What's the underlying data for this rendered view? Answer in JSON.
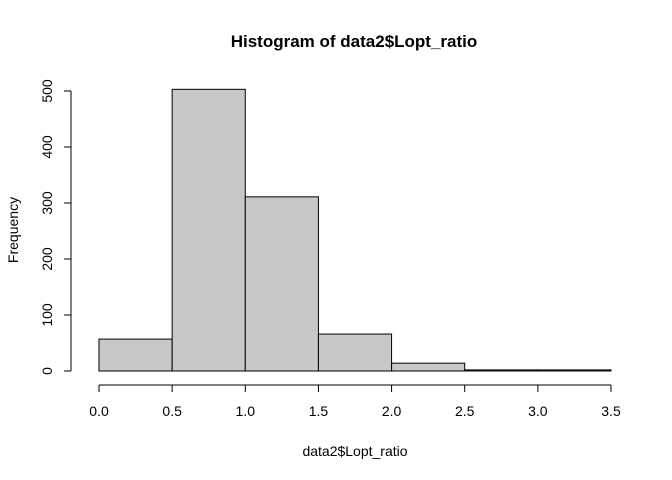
{
  "chart_data": {
    "type": "bar",
    "title": "Histogram of data2$Lopt_ratio",
    "xlabel": "data2$Lopt_ratio",
    "ylabel": "Frequency",
    "bins": [
      {
        "start": 0.0,
        "end": 0.5,
        "count": 57
      },
      {
        "start": 0.5,
        "end": 1.0,
        "count": 503
      },
      {
        "start": 1.0,
        "end": 1.5,
        "count": 311
      },
      {
        "start": 1.5,
        "end": 2.0,
        "count": 66
      },
      {
        "start": 2.0,
        "end": 2.5,
        "count": 14
      },
      {
        "start": 2.5,
        "end": 3.0,
        "count": 2
      },
      {
        "start": 3.0,
        "end": 3.5,
        "count": 2
      }
    ],
    "xlim": [
      0,
      3.5
    ],
    "ylim": [
      0,
      500
    ],
    "x_ticks": [
      "0.0",
      "0.5",
      "1.0",
      "1.5",
      "2.0",
      "2.5",
      "3.0",
      "3.5"
    ],
    "y_ticks": [
      "0",
      "100",
      "200",
      "300",
      "400",
      "500"
    ],
    "colors": {
      "bar_fill": "#c8c8c8",
      "bar_edge": "#000000"
    },
    "grid": false
  }
}
